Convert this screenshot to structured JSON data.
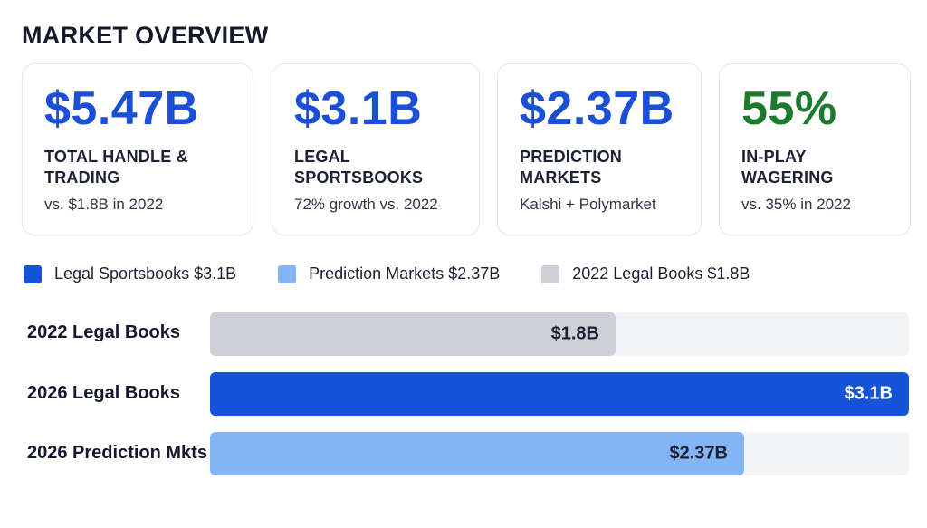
{
  "title": "MARKET OVERVIEW",
  "cards": [
    {
      "value": "$5.47B",
      "label": "TOTAL HANDLE & TRADING",
      "note": "vs. $1.8B in 2022",
      "color": "#1a4fd6"
    },
    {
      "value": "$3.1B",
      "label": "LEGAL SPORTSBOOKS",
      "note": "72% growth vs. 2022",
      "color": "#1a4fd6"
    },
    {
      "value": "$2.37B",
      "label": "PREDICTION MARKETS",
      "note": "Kalshi + Polymarket",
      "color": "#1a4fd6"
    },
    {
      "value": "55%",
      "label": "IN-PLAY WAGERING",
      "note": "vs. 35% in 2022",
      "color": "#1b7a2e"
    }
  ],
  "chart_data": {
    "type": "bar",
    "orientation": "horizontal",
    "categories": [
      "2022 Legal Books",
      "2026 Legal Books",
      "2026 Prediction Mkts"
    ],
    "values": [
      1.8,
      3.1,
      2.37
    ],
    "value_labels": [
      "$1.8B",
      "$3.1B",
      "$2.37B"
    ],
    "colors": [
      "#cdd0d6",
      "#1554d8",
      "#85b4f5"
    ],
    "label_colors": [
      "#1b2233",
      "#ffffff",
      "#1b2233"
    ],
    "xlim": [
      0,
      3.1
    ],
    "grid": false,
    "legend_position": "top-left",
    "legend": [
      {
        "label": "Legal Sportsbooks $3.1B",
        "color": "#1554d8"
      },
      {
        "label": "Prediction Markets $2.37B",
        "color": "#85b4f5"
      },
      {
        "label": "2022 Legal Books $1.8B",
        "color": "#cdd0d6"
      }
    ]
  }
}
